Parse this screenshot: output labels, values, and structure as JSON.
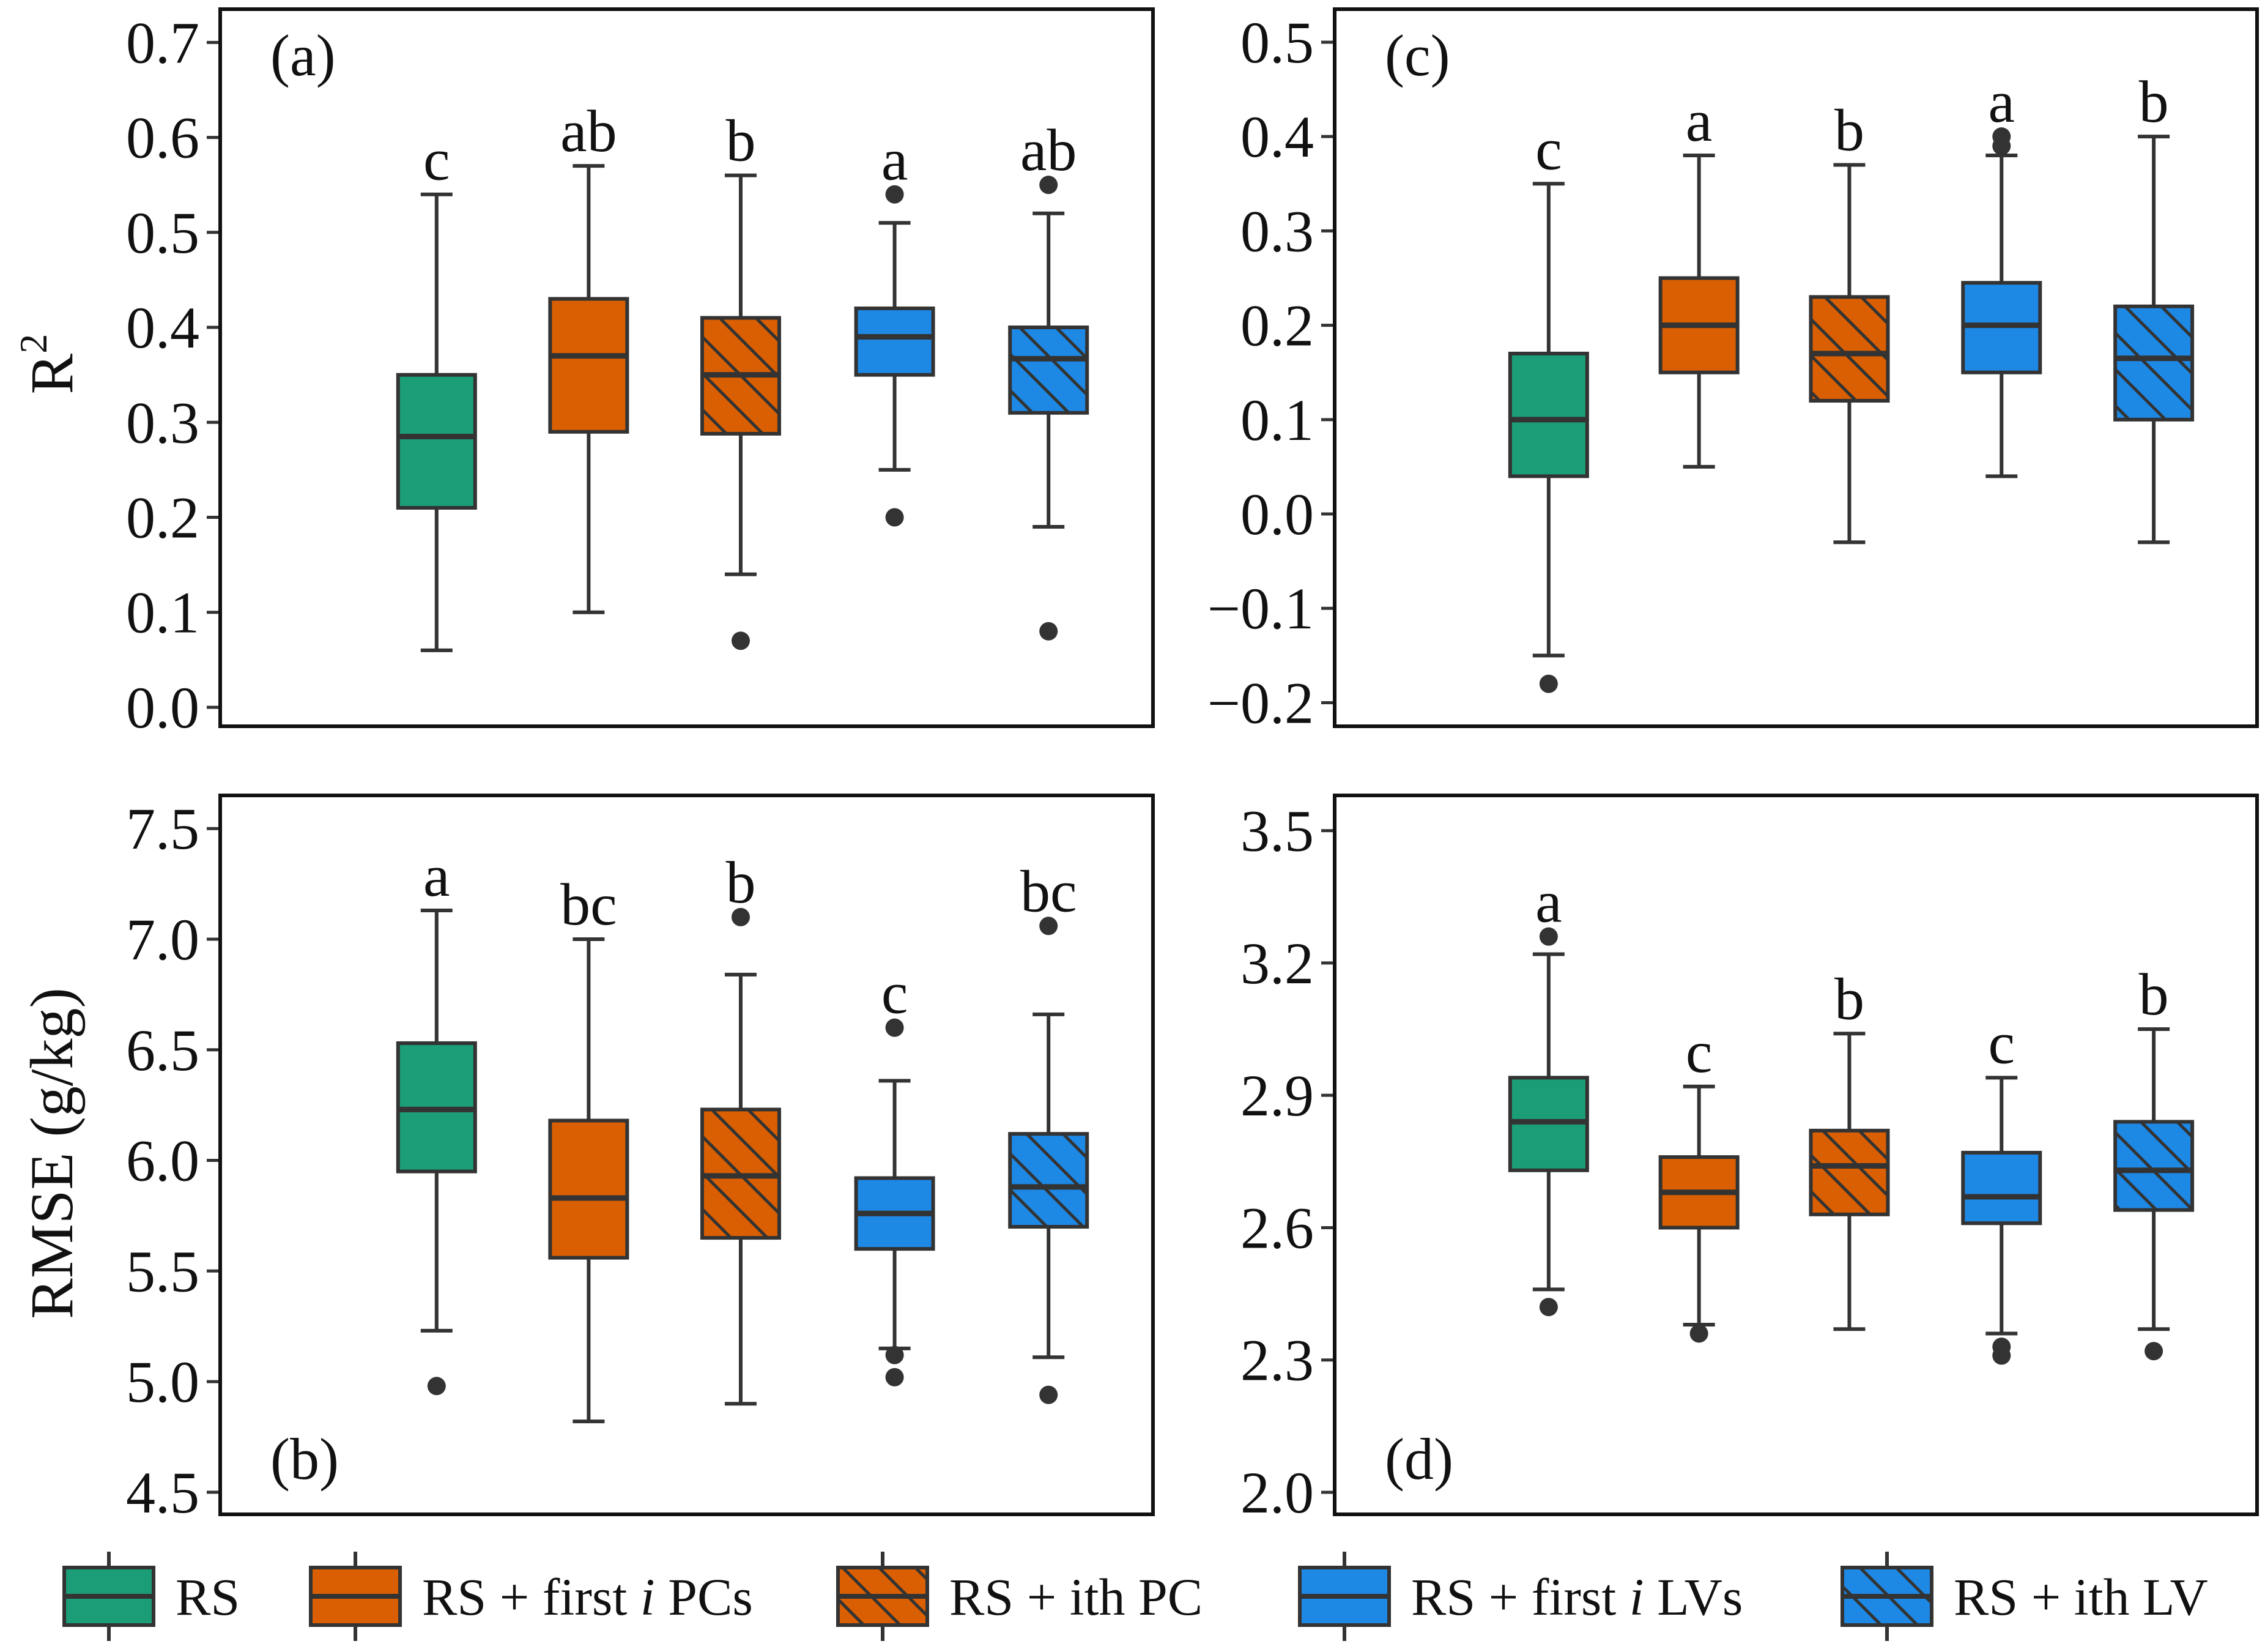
{
  "chart_data": [
    {
      "id": "a",
      "type": "box",
      "panel_label": "(a)",
      "ylabel": "R2",
      "ylim": [
        -0.02,
        0.735
      ],
      "yticks": [
        0.0,
        0.1,
        0.2,
        0.3,
        0.4,
        0.5,
        0.6,
        0.7
      ],
      "ytick_labels": [
        "0.0",
        "0.1",
        "0.2",
        "0.3",
        "0.4",
        "0.5",
        "0.6",
        "0.7"
      ],
      "boxes": [
        {
          "series": 0,
          "q1": 0.21,
          "median": 0.285,
          "q3": 0.35,
          "whisker_low": 0.06,
          "whisker_high": 0.54,
          "outliers": [],
          "letter": "c"
        },
        {
          "series": 1,
          "q1": 0.29,
          "median": 0.37,
          "q3": 0.43,
          "whisker_low": 0.1,
          "whisker_high": 0.57,
          "outliers": [],
          "letter": "ab"
        },
        {
          "series": 2,
          "q1": 0.288,
          "median": 0.35,
          "q3": 0.41,
          "whisker_low": 0.14,
          "whisker_high": 0.56,
          "outliers": [
            0.07
          ],
          "letter": "b"
        },
        {
          "series": 3,
          "q1": 0.35,
          "median": 0.39,
          "q3": 0.42,
          "whisker_low": 0.25,
          "whisker_high": 0.51,
          "outliers": [
            0.2,
            0.54
          ],
          "letter": "a"
        },
        {
          "series": 4,
          "q1": 0.31,
          "median": 0.367,
          "q3": 0.4,
          "whisker_low": 0.19,
          "whisker_high": 0.52,
          "outliers": [
            0.08,
            0.55
          ],
          "letter": "ab"
        }
      ]
    },
    {
      "id": "c",
      "type": "box",
      "panel_label": "(c)",
      "ylabel": "",
      "ylim": [
        -0.225,
        0.535
      ],
      "yticks": [
        -0.2,
        -0.1,
        0.0,
        0.1,
        0.2,
        0.3,
        0.4,
        0.5
      ],
      "ytick_labels": [
        "−0.2",
        "−0.1",
        "0.0",
        "0.1",
        "0.2",
        "0.3",
        "0.4",
        "0.5"
      ],
      "boxes": [
        {
          "series": 0,
          "q1": 0.04,
          "median": 0.1,
          "q3": 0.17,
          "whisker_low": -0.15,
          "whisker_high": 0.35,
          "outliers": [
            -0.18
          ],
          "letter": "c"
        },
        {
          "series": 1,
          "q1": 0.15,
          "median": 0.2,
          "q3": 0.25,
          "whisker_low": 0.05,
          "whisker_high": 0.38,
          "outliers": [],
          "letter": "a"
        },
        {
          "series": 2,
          "q1": 0.12,
          "median": 0.17,
          "q3": 0.23,
          "whisker_low": -0.03,
          "whisker_high": 0.37,
          "outliers": [],
          "letter": "b"
        },
        {
          "series": 3,
          "q1": 0.15,
          "median": 0.2,
          "q3": 0.245,
          "whisker_low": 0.04,
          "whisker_high": 0.38,
          "outliers": [
            0.39,
            0.4
          ],
          "letter": "a"
        },
        {
          "series": 4,
          "q1": 0.1,
          "median": 0.165,
          "q3": 0.22,
          "whisker_low": -0.03,
          "whisker_high": 0.4,
          "outliers": [],
          "letter": "b"
        }
      ]
    },
    {
      "id": "b",
      "type": "box",
      "panel_label": "(b)",
      "ylabel": "RMSE (g/kg)",
      "ylim": [
        4.4,
        7.65
      ],
      "yticks": [
        4.5,
        5.0,
        5.5,
        6.0,
        6.5,
        7.0,
        7.5
      ],
      "ytick_labels": [
        "4.5",
        "5.0",
        "5.5",
        "6.0",
        "6.5",
        "7.0",
        "7.5"
      ],
      "boxes": [
        {
          "series": 0,
          "q1": 5.95,
          "median": 6.23,
          "q3": 6.53,
          "whisker_low": 5.23,
          "whisker_high": 7.13,
          "outliers": [
            4.98
          ],
          "letter": "a"
        },
        {
          "series": 1,
          "q1": 5.56,
          "median": 5.83,
          "q3": 6.18,
          "whisker_low": 4.82,
          "whisker_high": 7.0,
          "outliers": [],
          "letter": "bc"
        },
        {
          "series": 2,
          "q1": 5.65,
          "median": 5.93,
          "q3": 6.23,
          "whisker_low": 4.9,
          "whisker_high": 6.84,
          "outliers": [
            7.1
          ],
          "letter": "b"
        },
        {
          "series": 3,
          "q1": 5.6,
          "median": 5.76,
          "q3": 5.92,
          "whisker_low": 5.15,
          "whisker_high": 6.36,
          "outliers": [
            5.02,
            5.12,
            6.6
          ],
          "letter": "c"
        },
        {
          "series": 4,
          "q1": 5.7,
          "median": 5.88,
          "q3": 6.12,
          "whisker_low": 5.11,
          "whisker_high": 6.66,
          "outliers": [
            4.94,
            7.06
          ],
          "letter": "bc"
        }
      ]
    },
    {
      "id": "d",
      "type": "box",
      "panel_label": "(d)",
      "ylabel": "",
      "ylim": [
        1.95,
        3.58
      ],
      "yticks": [
        2.0,
        2.3,
        2.6,
        2.9,
        3.2,
        3.5
      ],
      "ytick_labels": [
        "2.0",
        "2.3",
        "2.6",
        "2.9",
        "3.2",
        "3.5"
      ],
      "boxes": [
        {
          "series": 0,
          "q1": 2.73,
          "median": 2.84,
          "q3": 2.94,
          "whisker_low": 2.46,
          "whisker_high": 3.22,
          "outliers": [
            2.42,
            3.26
          ],
          "letter": "a"
        },
        {
          "series": 1,
          "q1": 2.6,
          "median": 2.68,
          "q3": 2.76,
          "whisker_low": 2.38,
          "whisker_high": 2.92,
          "outliers": [
            2.36
          ],
          "letter": "c"
        },
        {
          "series": 2,
          "q1": 2.63,
          "median": 2.74,
          "q3": 2.82,
          "whisker_low": 2.37,
          "whisker_high": 3.04,
          "outliers": [],
          "letter": "b"
        },
        {
          "series": 3,
          "q1": 2.61,
          "median": 2.67,
          "q3": 2.77,
          "whisker_low": 2.36,
          "whisker_high": 2.94,
          "outliers": [
            2.31,
            2.33
          ],
          "letter": "c"
        },
        {
          "series": 4,
          "q1": 2.64,
          "median": 2.73,
          "q3": 2.84,
          "whisker_low": 2.37,
          "whisker_high": 3.05,
          "outliers": [
            2.32
          ],
          "letter": "b"
        }
      ]
    }
  ],
  "legend": {
    "position": "bottom",
    "items": [
      {
        "label": "RS",
        "color": "#1b9e77",
        "hatched": false
      },
      {
        "label": "RS + first i PCs",
        "color": "#d95f02",
        "hatched": false
      },
      {
        "label": "RS + ith PC",
        "color": "#d95f02",
        "hatched": true
      },
      {
        "label": "RS + first i LVs",
        "color": "#1e88e5",
        "hatched": false
      },
      {
        "label": "RS + ith LV",
        "color": "#1e88e5",
        "hatched": true
      }
    ]
  },
  "colors": {
    "green": "#1b9e77",
    "orange": "#d95f02",
    "blue": "#1e88e5",
    "line": "#333333"
  }
}
